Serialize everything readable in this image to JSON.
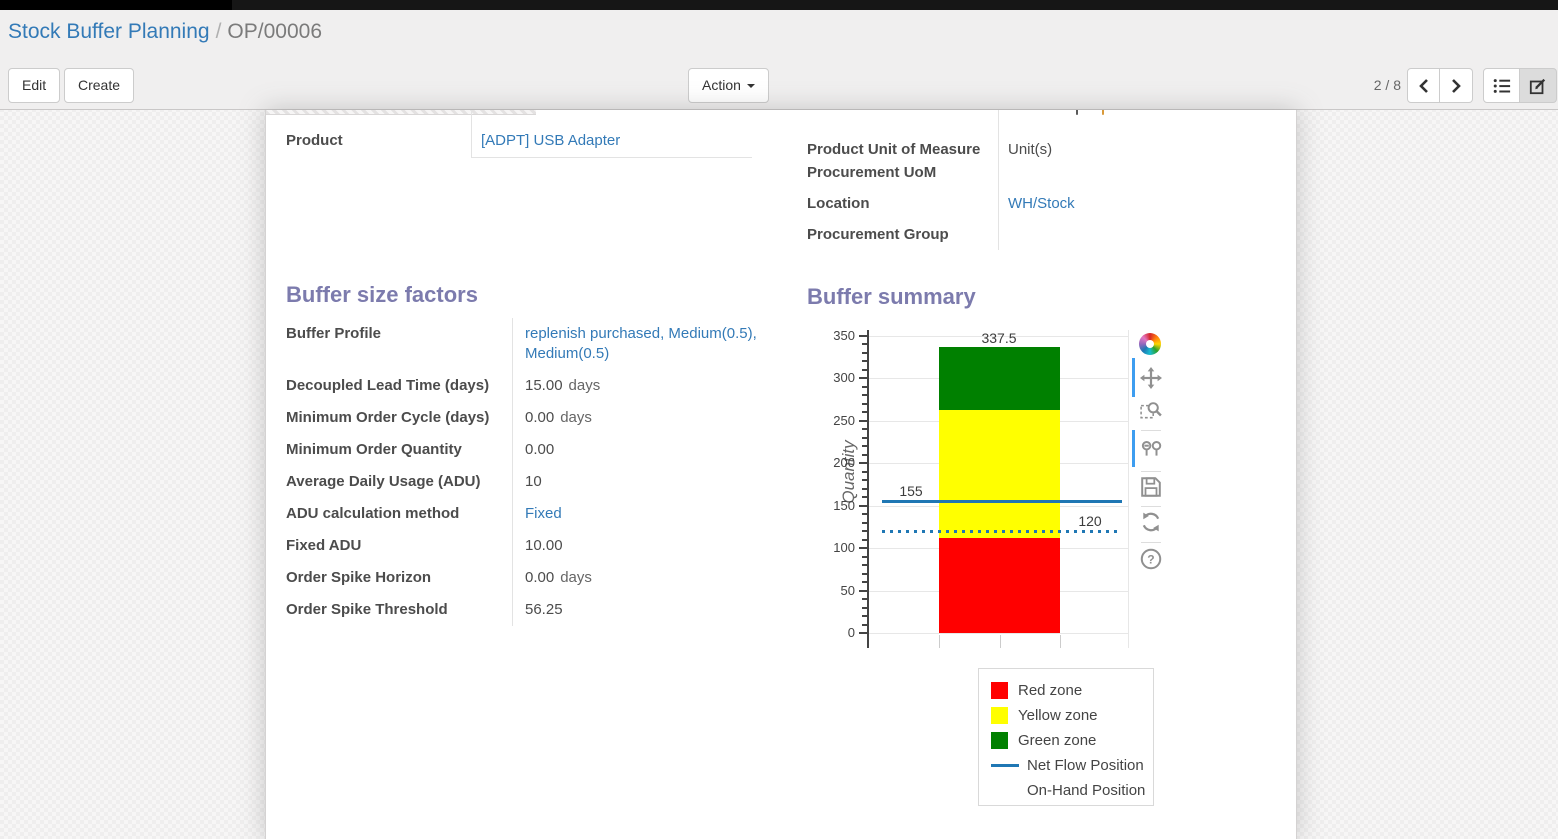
{
  "breadcrumb": {
    "parent": "Stock Buffer Planning",
    "separator": "/",
    "current": "OP/00006"
  },
  "control_panel": {
    "edit_label": "Edit",
    "create_label": "Create",
    "action_label": "Action",
    "pager_value": "2 / 8",
    "view_switcher": [
      "list-view",
      "form-view"
    ],
    "active_view": "form-view"
  },
  "sheet": {
    "header_group": {
      "product_label": "Product",
      "product_value": "[ADPT] USB Adapter",
      "uom_label": "Product Unit of Measure",
      "uom_value": "Unit(s)",
      "procurement_uom_label": "Procurement UoM",
      "procurement_uom_value": "",
      "location_label": "Location",
      "location_value": "WH/Stock",
      "procurement_group_label": "Procurement Group",
      "procurement_group_value": ""
    },
    "buffer_size_factors": {
      "title": "Buffer size factors",
      "rows": [
        {
          "label": "Buffer Profile",
          "value": "replenish purchased, Medium(0.5), Medium(0.5)",
          "suffix": "",
          "is_link": true
        },
        {
          "label": "Decoupled Lead Time (days)",
          "value": "15.00",
          "suffix": "days",
          "is_link": false
        },
        {
          "label": "Minimum Order Cycle (days)",
          "value": "0.00",
          "suffix": "days",
          "is_link": false
        },
        {
          "label": "Minimum Order Quantity",
          "value": "0.00",
          "suffix": "",
          "is_link": false
        },
        {
          "label": "Average Daily Usage (ADU)",
          "value": "10",
          "suffix": "",
          "is_link": false
        },
        {
          "label": "ADU calculation method",
          "value": "Fixed",
          "suffix": "",
          "is_link": true
        },
        {
          "label": "Fixed ADU",
          "value": "10.00",
          "suffix": "",
          "is_link": false
        },
        {
          "label": "Order Spike Horizon",
          "value": "0.00",
          "suffix": "days",
          "is_link": false
        },
        {
          "label": "Order Spike Threshold",
          "value": "56.25",
          "suffix": "",
          "is_link": false
        }
      ]
    },
    "buffer_summary_title": "Buffer summary"
  },
  "chart_data": {
    "type": "bar",
    "title": "Buffer summary",
    "xlabel": "",
    "ylabel": "Quantity",
    "ylim": [
      0,
      350
    ],
    "ytick_step": 50,
    "yminor_step": 10,
    "grid": true,
    "legend_position": "bottom-right",
    "stacked_bar": {
      "segments": [
        {
          "name": "Red zone",
          "color": "#ff0000",
          "height": 112.5,
          "cumulative_top": 112.5,
          "label": "112.5"
        },
        {
          "name": "Yellow zone",
          "color": "#ffff00",
          "height": 150,
          "cumulative_top": 262.5,
          "label": "262.5"
        },
        {
          "name": "Green zone",
          "color": "#008000",
          "height": 75,
          "cumulative_top": 337.5,
          "label": "337.5"
        }
      ]
    },
    "reference_lines": [
      {
        "name": "Net Flow Position",
        "value": 155,
        "label": "155",
        "style": "solid",
        "color": "#1f77b4",
        "label_side": "left"
      },
      {
        "name": "On-Hand Position",
        "value": 120,
        "label": "120",
        "style": "dotted",
        "color": "#1f77b4",
        "label_side": "right"
      }
    ],
    "legend": [
      {
        "label": "Red zone",
        "swatch": "square",
        "color": "#ff0000"
      },
      {
        "label": "Yellow zone",
        "swatch": "square",
        "color": "#ffff00"
      },
      {
        "label": "Green zone",
        "swatch": "square",
        "color": "#008000"
      },
      {
        "label": "Net Flow Position",
        "swatch": "line",
        "color": "#1f77b4"
      },
      {
        "label": "On-Hand Position",
        "swatch": "dotted-line",
        "color": "#1f77b4"
      }
    ],
    "modebar_icons": [
      "plotly-logo",
      "pan",
      "zoom-box",
      "hover-compare",
      "save-image",
      "reset-axes",
      "help"
    ]
  },
  "colors": {
    "link": "#337ab7",
    "section_heading": "#7c7bad",
    "net_flow_line": "#1f77b4",
    "modebar_active": "#3d9df0"
  }
}
